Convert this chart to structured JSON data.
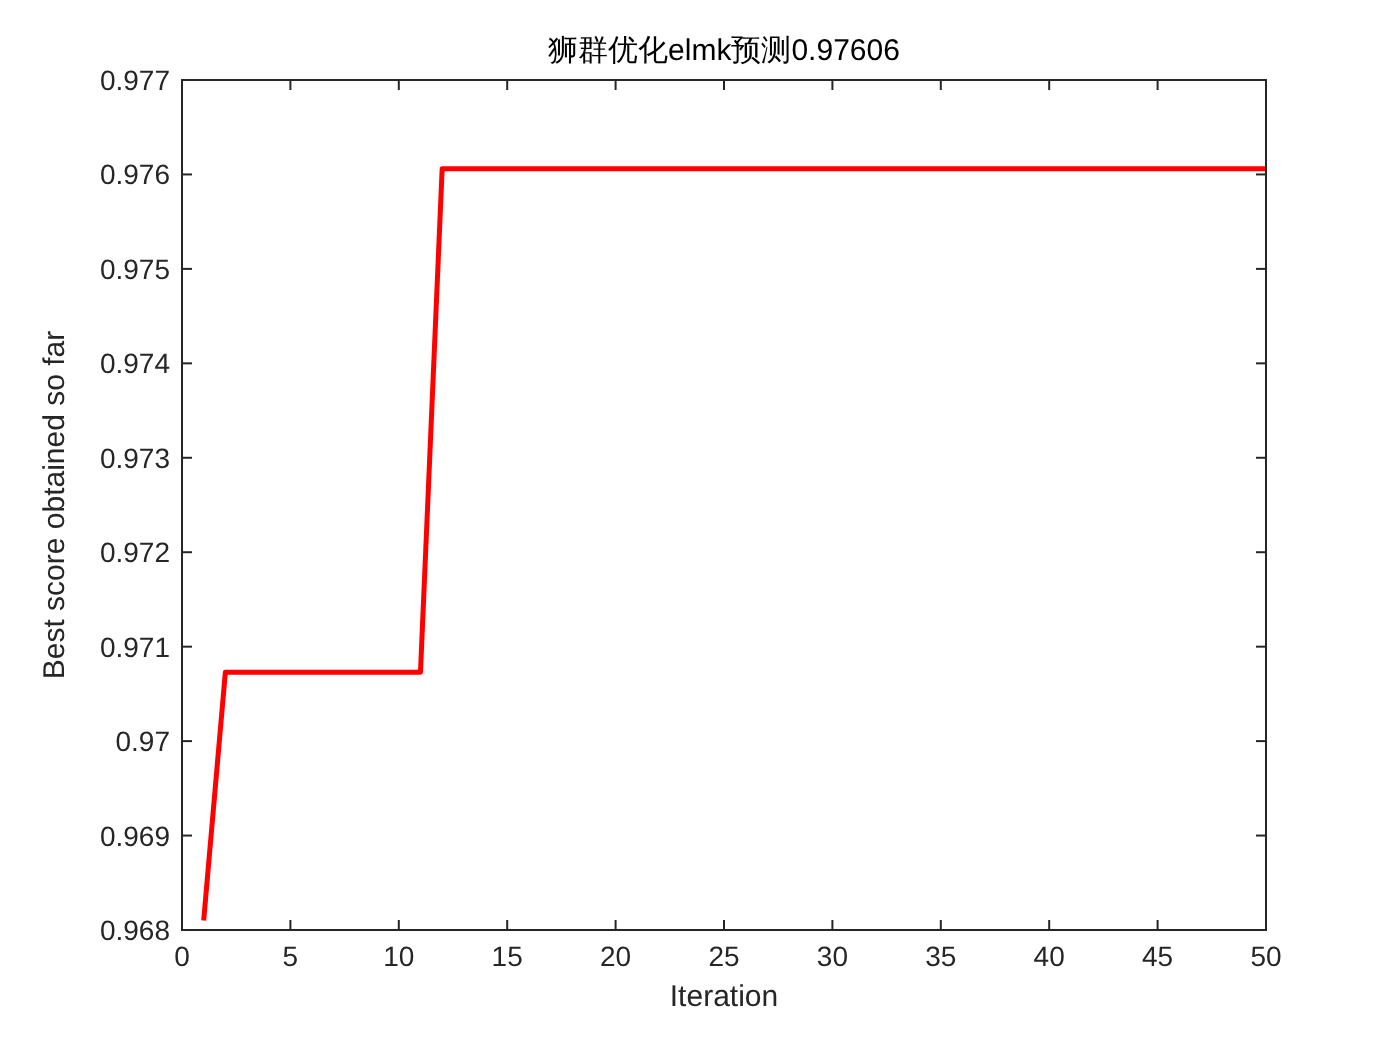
{
  "chart_data": {
    "type": "line",
    "title": "狮群优化elmk预测0.97606",
    "xlabel": "Iteration",
    "ylabel": "Best score obtained so far",
    "x": [
      1,
      2,
      11,
      12,
      50
    ],
    "series": [
      {
        "color": "#ff0000",
        "values": [
          0.9681,
          0.97073,
          0.97073,
          0.97606,
          0.97606
        ]
      }
    ],
    "xlim": [
      0,
      50
    ],
    "ylim": [
      0.968,
      0.977
    ],
    "xticks": [
      0,
      5,
      10,
      15,
      20,
      25,
      30,
      35,
      40,
      45,
      50
    ],
    "yticks": [
      0.968,
      0.969,
      0.97,
      0.971,
      0.972,
      0.973,
      0.974,
      0.975,
      0.976,
      0.977
    ]
  }
}
